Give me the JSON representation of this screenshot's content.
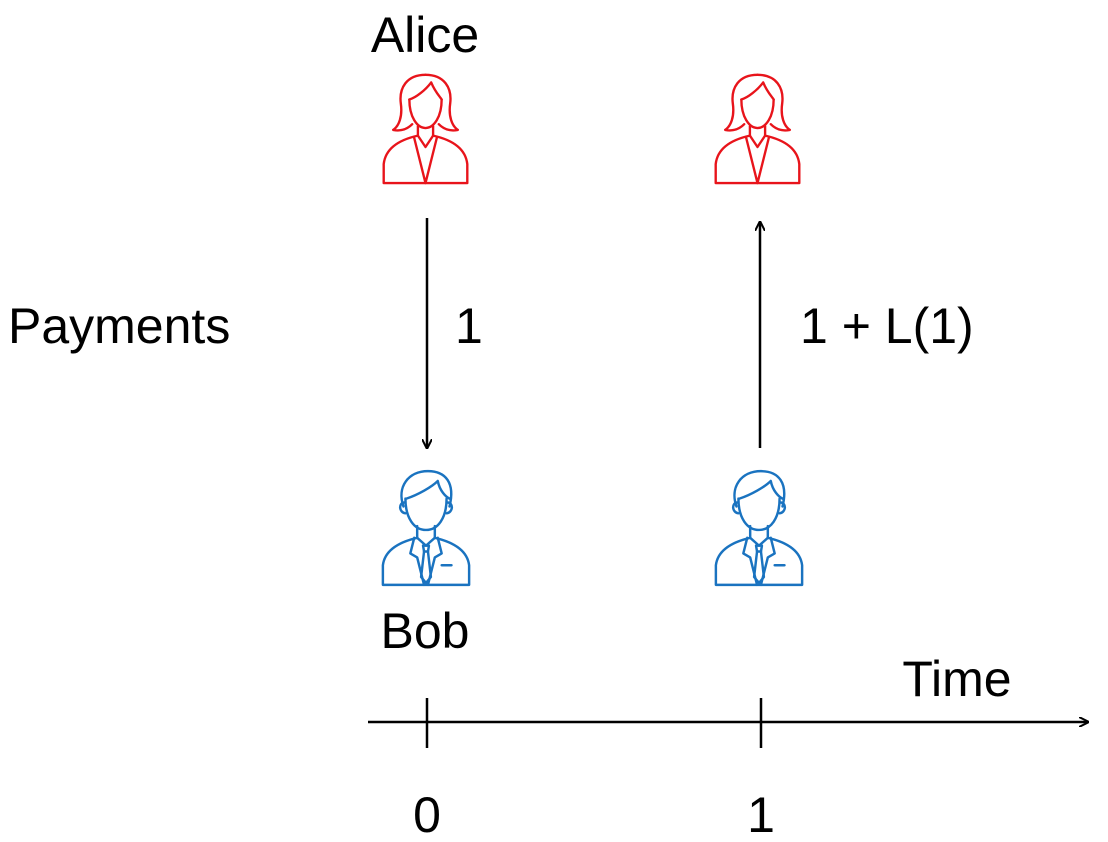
{
  "actors": {
    "alice_name": "Alice",
    "bob_name": "Bob",
    "alice_color": "#e8141b",
    "bob_color": "#1a73c0"
  },
  "row_label": "Payments",
  "payments": [
    {
      "time": 0,
      "amount_label": "1",
      "direction": "Alice to Bob"
    },
    {
      "time": 1,
      "amount_label": "1 + L(1)",
      "direction": "Bob to Alice"
    }
  ],
  "timeline": {
    "label": "Time",
    "ticks": [
      "0",
      "1"
    ]
  },
  "icons": {
    "alice": "woman-person-icon",
    "bob": "man-person-icon"
  }
}
